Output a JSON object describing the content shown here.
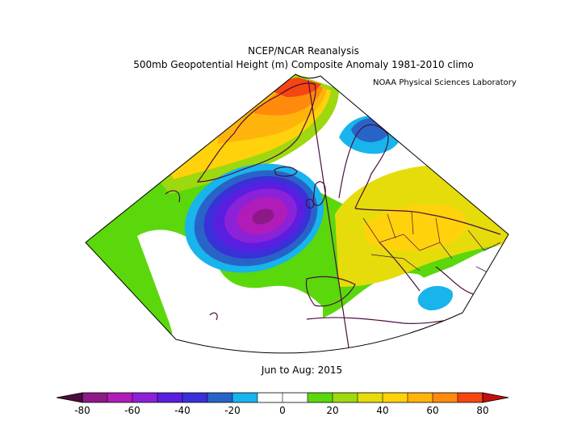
{
  "header": {
    "title": "NCEP/NCAR Reanalysis",
    "subtitle": "500mb Geopotential Height (m) Composite Anomaly 1981-2010 climo",
    "credit": "NOAA Physical Sciences Laboratory"
  },
  "footer": {
    "period": "Jun to Aug: 2015"
  },
  "colorbar": {
    "min": -80,
    "max": 80,
    "step": 10,
    "ticks": [
      "-80",
      "-60",
      "-40",
      "-20",
      "0",
      "20",
      "40",
      "60",
      "80"
    ],
    "colors": [
      "#4b0c3e",
      "#8c1a86",
      "#b11cb8",
      "#8c22d8",
      "#5a1ee0",
      "#3a30d8",
      "#2864c8",
      "#18b4ec",
      "#ffffff",
      "#ffffff",
      "#5ad80c",
      "#9ed80e",
      "#e6dc0c",
      "#ffd20c",
      "#ffb40c",
      "#ff8a0c",
      "#f54510",
      "#c40e0e"
    ]
  },
  "map": {
    "region": "North Atlantic / Europe",
    "field": "500mb geopotential height anomaly",
    "features": [
      {
        "name": "Deep negative anomaly west of Ireland",
        "min_value": -80
      },
      {
        "name": "Positive anomaly over Greenland",
        "max_value": 80
      },
      {
        "name": "Positive anomaly over central and eastern Europe",
        "max_value": 40
      },
      {
        "name": "Negative anomaly over Scandinavia",
        "min_value": -20
      },
      {
        "name": "Negative anomaly over the eastern Mediterranean",
        "min_value": -20
      }
    ]
  }
}
